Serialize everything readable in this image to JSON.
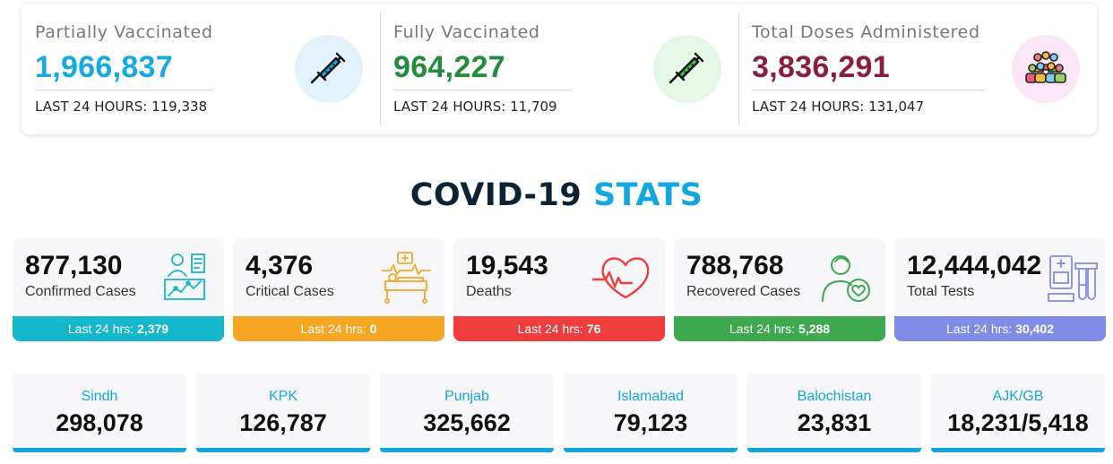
{
  "vaccination": [
    {
      "title": "Partially Vaccinated",
      "value": "1,966,837",
      "last24": "LAST 24 HOURS: 119,338",
      "value_color": "#14a9e1",
      "icon": "syringe-icon",
      "icon_bg": "#e2f2fb"
    },
    {
      "title": "Fully Vaccinated",
      "value": "964,227",
      "last24": "LAST 24 HOURS: 11,709",
      "value_color": "#238b3a",
      "icon": "syringe-icon",
      "icon_bg": "#e4f6e5"
    },
    {
      "title": "Total Doses Administered",
      "value": "3,836,291",
      "last24": "LAST 24 HOURS: 131,047",
      "value_color": "#8a1f3d",
      "icon": "people-group-icon",
      "icon_bg": "#fbe6f7"
    }
  ],
  "stats_title": {
    "part1": "COVID-19",
    "part2": "STATS"
  },
  "stats": [
    {
      "value": "877,130",
      "label": "Confirmed Cases",
      "last24_label": "Last 24 hrs:",
      "last24_value": "2,379",
      "color": "#14b6c9",
      "icon": "patient-chart-icon"
    },
    {
      "value": "4,376",
      "label": "Critical Cases",
      "last24_label": "Last 24 hrs:",
      "last24_value": "0",
      "color": "#f5a623",
      "icon": "hospital-bed-icon"
    },
    {
      "value": "19,543",
      "label": "Deaths",
      "last24_label": "Last 24 hrs:",
      "last24_value": "76",
      "color": "#ef3c3c",
      "icon": "heart-rate-icon"
    },
    {
      "value": "788,768",
      "label": "Recovered Cases",
      "last24_label": "Last 24 hrs:",
      "last24_value": "5,288",
      "color": "#3ea84e",
      "icon": "recovered-person-icon"
    },
    {
      "value": "12,444,042",
      "label": "Total Tests",
      "last24_label": "Last 24 hrs:",
      "last24_value": "30,402",
      "color": "#7f8ce6",
      "icon": "test-kit-icon"
    }
  ],
  "provinces": [
    {
      "name": "Sindh",
      "value": "298,078"
    },
    {
      "name": "KPK",
      "value": "126,787"
    },
    {
      "name": "Punjab",
      "value": "325,662"
    },
    {
      "name": "Islamabad",
      "value": "79,123"
    },
    {
      "name": "Balochistan",
      "value": "23,831"
    },
    {
      "name": "AJK/GB",
      "value": "18,231/5,418"
    }
  ]
}
